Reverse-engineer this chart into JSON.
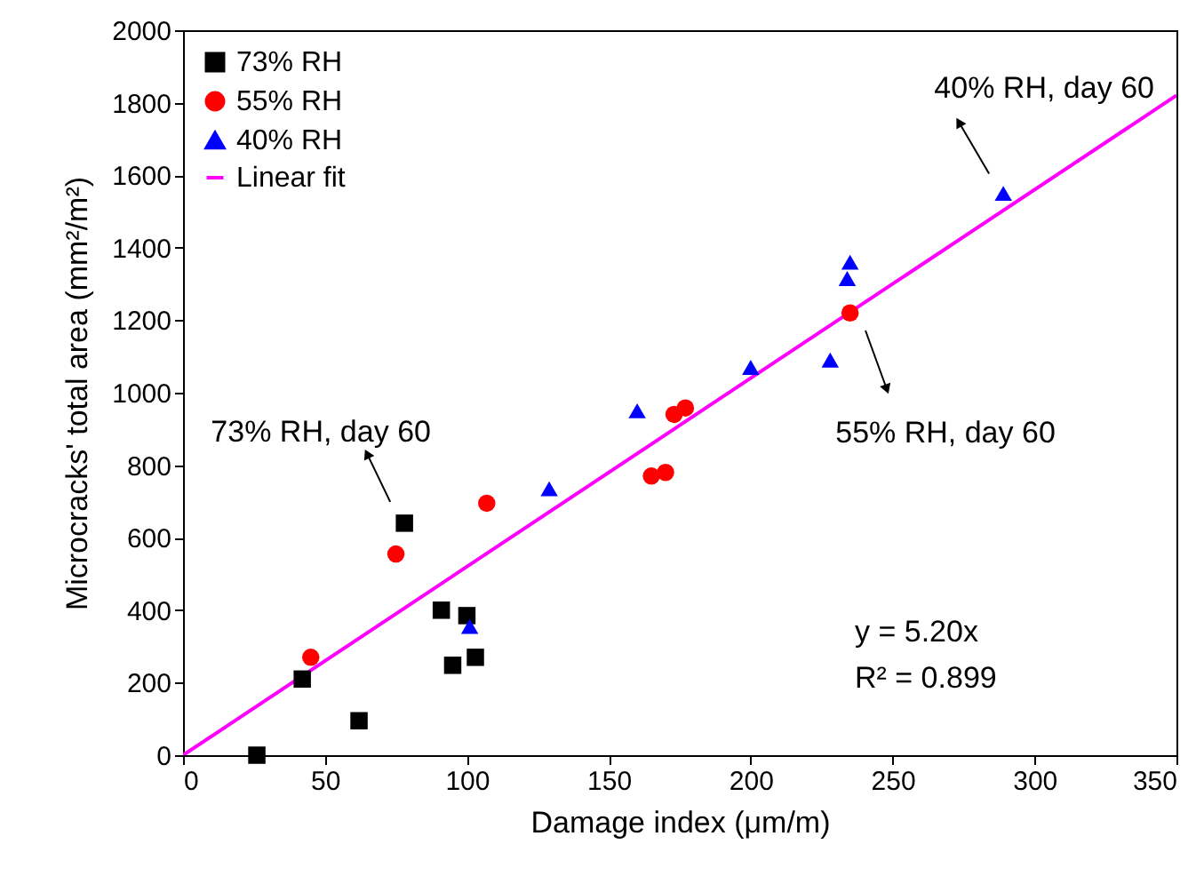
{
  "chart_data": {
    "type": "scatter",
    "xlabel": "Damage index (μm/m)",
    "ylabel": "Microcracks' total area (mm²/m²)",
    "xlim": [
      0,
      350
    ],
    "ylim": [
      0,
      2000
    ],
    "xticks": [
      0,
      50,
      100,
      150,
      200,
      250,
      300,
      350
    ],
    "yticks": [
      0,
      200,
      400,
      600,
      800,
      1000,
      1200,
      1400,
      1600,
      1800,
      2000
    ],
    "grid": false,
    "legend": "top left",
    "series": [
      {
        "name": "73% RH",
        "marker": "square",
        "color": "#000000",
        "x": [
          26,
          42,
          62,
          78,
          91,
          95,
          100,
          103
        ],
        "values": [
          0,
          210,
          95,
          640,
          400,
          248,
          385,
          270
        ]
      },
      {
        "name": "55% RH",
        "marker": "circle",
        "color": "#ff0000",
        "x": [
          45,
          75,
          107,
          165,
          170,
          173,
          177,
          235
        ],
        "values": [
          270,
          555,
          695,
          770,
          780,
          940,
          958,
          1220
        ]
      },
      {
        "name": "40% RH",
        "marker": "triangle",
        "color": "#0000ff",
        "x": [
          101,
          129,
          160,
          200,
          228,
          234,
          235,
          289
        ],
        "values": [
          355,
          735,
          950,
          1070,
          1090,
          1315,
          1360,
          1550
        ]
      },
      {
        "name": "Linear fit",
        "type": "line",
        "line_style": "solid",
        "color": "#ff00ff",
        "x": [
          0,
          350
        ],
        "values": [
          0,
          1820
        ]
      }
    ],
    "annotations": [
      {
        "text": "73% RH, day 60",
        "x": 78,
        "y": 640
      },
      "55% RH, day 60",
      {
        "text": "40% RH, day 60",
        "x": 289,
        "y": 1550
      },
      "y = 5.20x",
      "R² = 0.899"
    ]
  }
}
